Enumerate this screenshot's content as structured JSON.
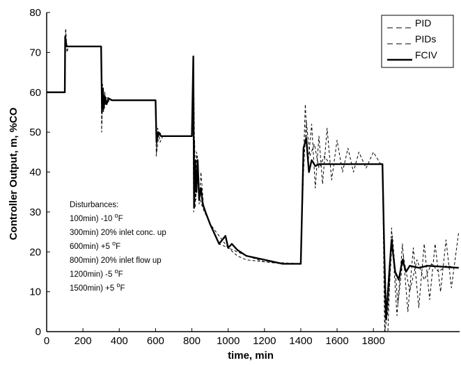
{
  "chart_data": {
    "type": "line",
    "x_label": "time, min",
    "y_label": "Controller Output, m, %CO",
    "xlim": [
      0,
      2275
    ],
    "ylim": [
      0,
      80
    ],
    "xticks": [
      0,
      200,
      400,
      600,
      800,
      1000,
      1200,
      1400,
      1600,
      1800
    ],
    "yticks": [
      0,
      10,
      20,
      30,
      40,
      50,
      60,
      70,
      80
    ],
    "grid": false,
    "legend": "top-right",
    "series": [
      {
        "name": "PID",
        "color": "#000000",
        "style": "dashed",
        "x": [
          0,
          100,
          105,
          112,
          120,
          300,
          303,
          308,
          313,
          320,
          330,
          345,
          600,
          604,
          612,
          625,
          640,
          800,
          805,
          810,
          815,
          822,
          830,
          840,
          850,
          865,
          880,
          900,
          950,
          1000,
          1050,
          1100,
          1200,
          1300,
          1400,
          1410,
          1425,
          1440,
          1460,
          1480,
          1500,
          1520,
          1545,
          1570,
          1600,
          1630,
          1660,
          1690,
          1720,
          1760,
          1800,
          1840,
          1850,
          1865,
          1880,
          1900,
          1930,
          1960,
          1990,
          2020,
          2050,
          2080,
          2110,
          2140,
          2170,
          2200,
          2230,
          2270
        ],
        "values": [
          60,
          60,
          76,
          70,
          71.5,
          71.5,
          50,
          62,
          55,
          60,
          57,
          58,
          58,
          44,
          51,
          47.5,
          49,
          49,
          65,
          30,
          48,
          33,
          44,
          32,
          40,
          31,
          29,
          27,
          22,
          21,
          19,
          18,
          17.5,
          17,
          17,
          36,
          57,
          42,
          52,
          36,
          49,
          37,
          51,
          38,
          48,
          40,
          46,
          40,
          45,
          41,
          45,
          42,
          42,
          0,
          0,
          26,
          4,
          22,
          5,
          21,
          6,
          22,
          8,
          22,
          10,
          23,
          11,
          25
        ]
      },
      {
        "name": "PIDs",
        "color": "#000000",
        "style": "dashed",
        "x": [
          0,
          100,
          104,
          110,
          300,
          304,
          310,
          318,
          330,
          345,
          600,
          606,
          620,
          640,
          800,
          810,
          818,
          826,
          840,
          860,
          900,
          1000,
          1100,
          1200,
          1400,
          1415,
          1430,
          1450,
          1475,
          1500,
          1530,
          1560,
          1600,
          1850,
          1862,
          1880,
          1905,
          1935,
          1965,
          2000,
          2040,
          2080,
          2120,
          2160,
          2200,
          2270
        ],
        "values": [
          60,
          60,
          75.5,
          71.5,
          71.5,
          52,
          61,
          56,
          59,
          58,
          58,
          45,
          50,
          49,
          49,
          66,
          31,
          45,
          34,
          31,
          27,
          21,
          19,
          17.5,
          17,
          40,
          53,
          44,
          47,
          41,
          44,
          42,
          42,
          42,
          0,
          5,
          24,
          7,
          19,
          10,
          18,
          13,
          17,
          15,
          16.5,
          16
        ]
      },
      {
        "name": "FCIV",
        "color": "#000000",
        "style": "solid",
        "x": [
          0,
          100,
          102,
          110,
          300,
          305,
          310,
          315,
          320,
          330,
          340,
          360,
          600,
          605,
          615,
          630,
          800,
          808,
          812,
          818,
          825,
          832,
          840,
          850,
          860,
          875,
          900,
          950,
          985,
          1000,
          1020,
          1050,
          1100,
          1200,
          1300,
          1400,
          1415,
          1430,
          1445,
          1460,
          1480,
          1500,
          1600,
          1850,
          1860,
          1870,
          1880,
          1900,
          1920,
          1940,
          1960,
          1980,
          2000,
          2050,
          2100,
          2270
        ],
        "values": [
          60,
          60,
          74,
          71.5,
          71.5,
          55,
          61,
          56,
          59,
          57,
          58.5,
          58,
          58,
          47.5,
          50,
          49,
          49,
          69,
          31,
          43,
          35,
          43,
          33,
          36,
          32,
          30,
          27,
          22,
          24,
          21,
          22,
          20.5,
          19,
          18,
          17,
          17,
          46,
          48.5,
          40,
          43,
          41.5,
          42,
          42,
          42,
          20,
          3,
          10,
          23,
          15,
          13,
          18,
          15,
          16.5,
          16,
          16.5,
          16
        ]
      }
    ],
    "annotation": {
      "title": "Disturbances:",
      "lines": [
        {
          "text": "100min)  -10 ",
          "sup": "o",
          "unit": "F"
        },
        {
          "text": "300min)  20% inlet conc. up"
        },
        {
          "text": "600min)  +5 ",
          "sup": "o",
          "unit": "F"
        },
        {
          "text": "800min)  20% inlet flow up"
        },
        {
          "text": "1200min)  -5 ",
          "sup": "o",
          "unit": "F"
        },
        {
          "text": "1500min)  +5 ",
          "sup": "o",
          "unit": "F"
        }
      ]
    }
  }
}
